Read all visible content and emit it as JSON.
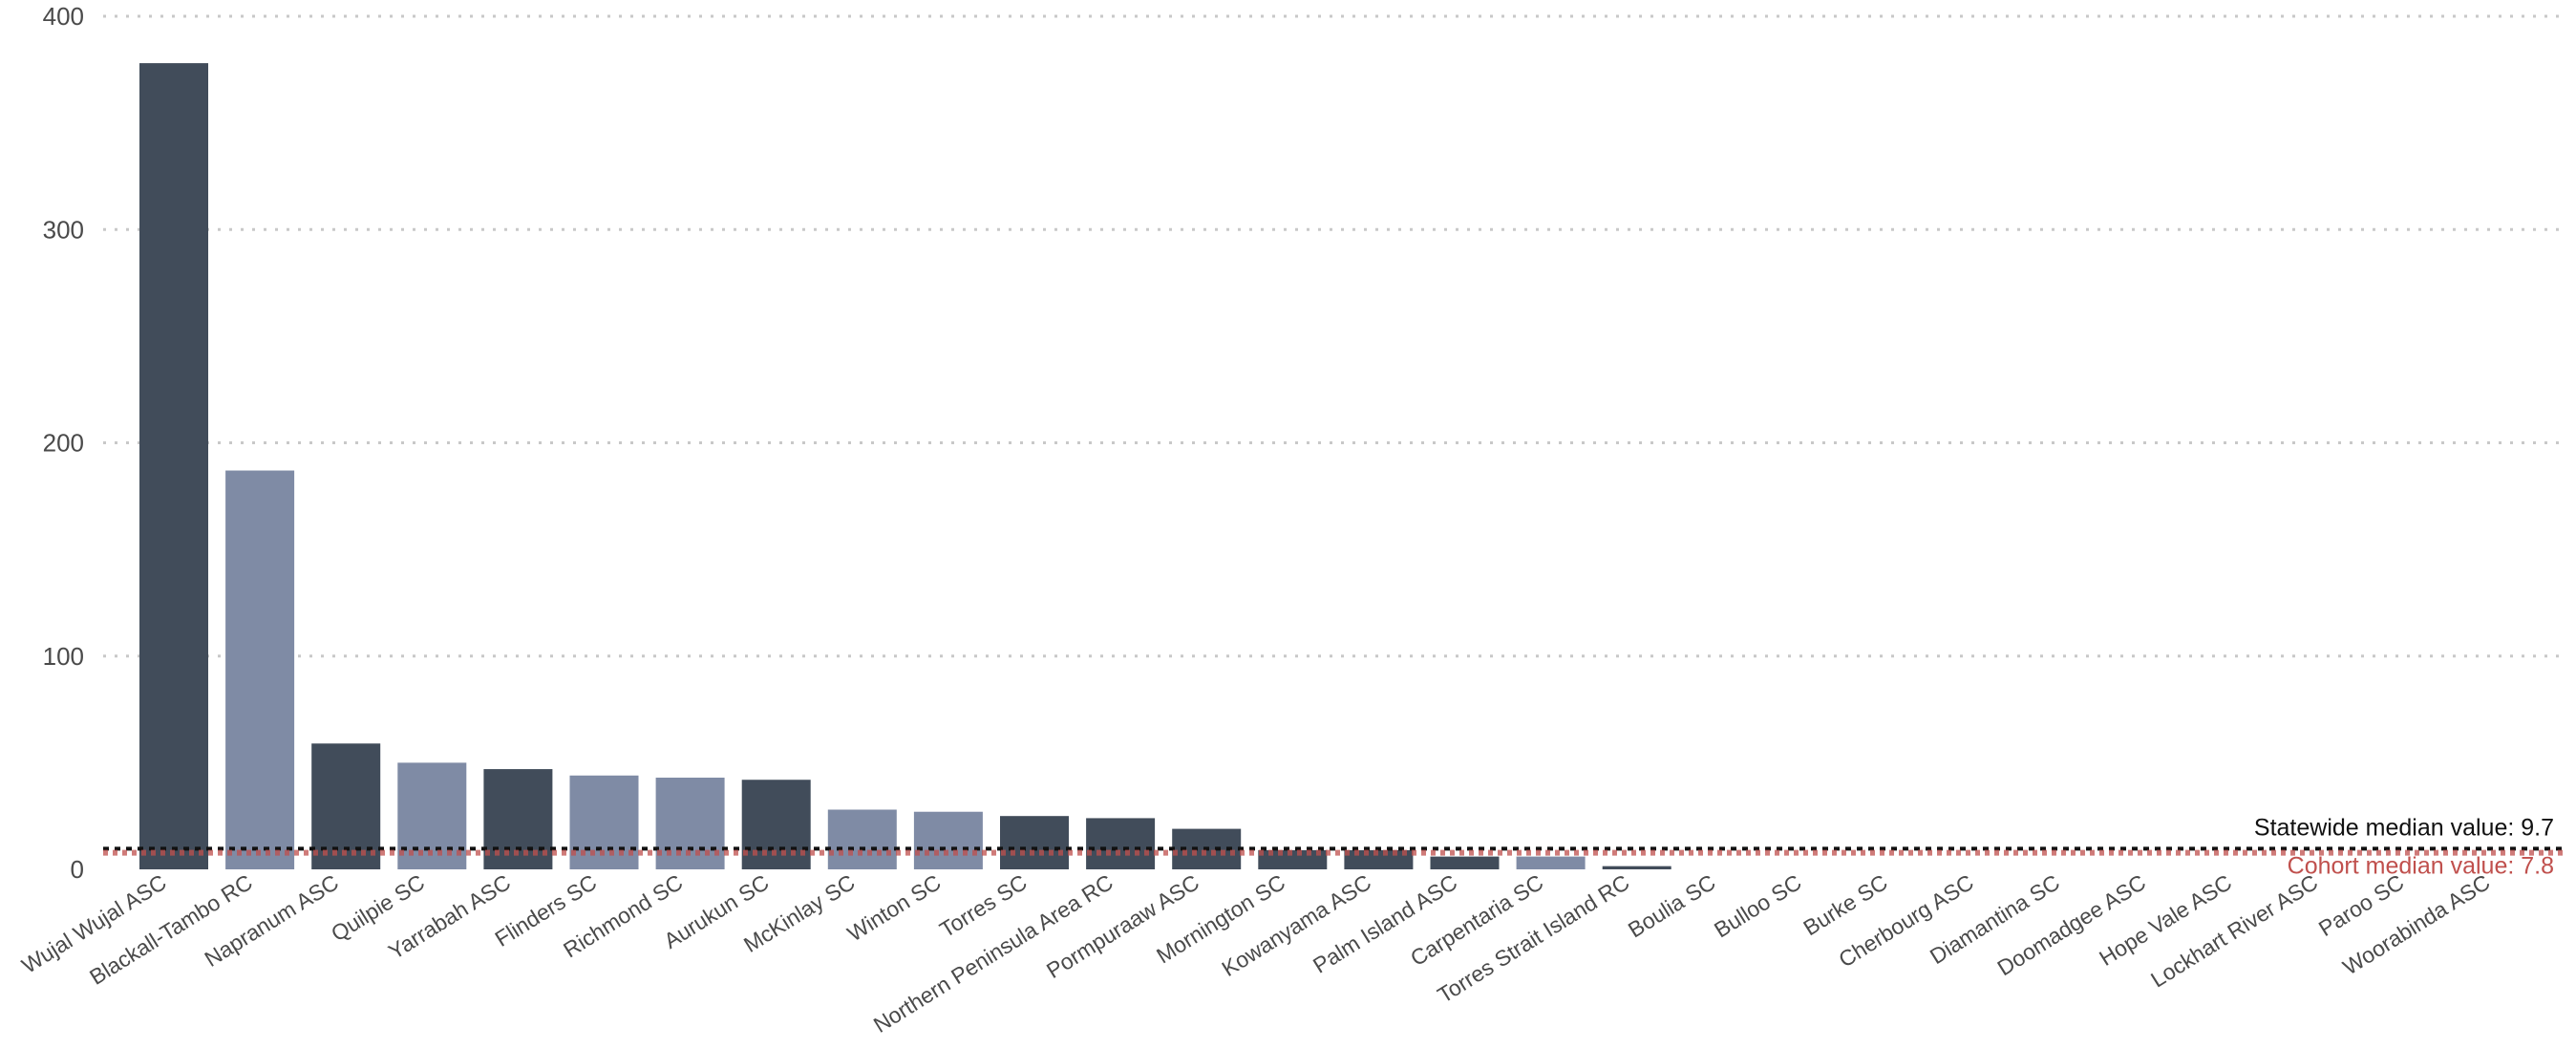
{
  "chart_data": {
    "type": "bar",
    "title": "",
    "xlabel": "",
    "ylabel": "",
    "ylim": [
      0,
      400
    ],
    "yticks": [
      0,
      100,
      200,
      300,
      400
    ],
    "grid": true,
    "categories": [
      "Wujal Wujal ASC",
      "Blackall-Tambo RC",
      "Napranum ASC",
      "Quilpie SC",
      "Yarrabah ASC",
      "Flinders SC",
      "Richmond SC",
      "Aurukun SC",
      "McKinlay SC",
      "Winton SC",
      "Torres SC",
      "Northern Peninsula Area RC",
      "Pormpuraaw ASC",
      "Mornington SC",
      "Kowanyama ASC",
      "Palm Island ASC",
      "Carpentaria SC",
      "Torres Strait Island RC",
      "Boulia SC",
      "Bulloo SC",
      "Burke SC",
      "Cherbourg ASC",
      "Diamantina SC",
      "Doomadgee ASC",
      "Hope Vale ASC",
      "Lockhart River ASC",
      "Paroo SC",
      "Woorabinda ASC"
    ],
    "values": [
      378,
      187,
      59,
      50,
      47,
      44,
      43,
      42,
      28,
      27,
      25,
      24,
      19,
      9,
      9,
      6,
      6,
      1.5,
      0,
      0,
      0,
      0,
      0,
      0,
      0,
      0,
      0,
      0
    ],
    "bar_groups": [
      "dark",
      "light",
      "dark",
      "light",
      "dark",
      "light",
      "light",
      "dark",
      "light",
      "light",
      "dark",
      "dark",
      "dark",
      "dark",
      "dark",
      "dark",
      "light",
      "dark",
      "dark",
      "dark",
      "dark",
      "dark",
      "dark",
      "dark",
      "dark",
      "dark",
      "dark",
      "dark"
    ],
    "colors": {
      "dark": "#414c5a",
      "light": "#7f8ba5",
      "grid": "#c8c8c8",
      "statewide": "#111111",
      "cohort": "#c0504d"
    },
    "reference_lines": [
      {
        "key": "statewide",
        "label": "Statewide median value: 9.7",
        "value": 9.7
      },
      {
        "key": "cohort",
        "label": "Cohort median value: 7.8",
        "value": 7.8
      }
    ]
  }
}
